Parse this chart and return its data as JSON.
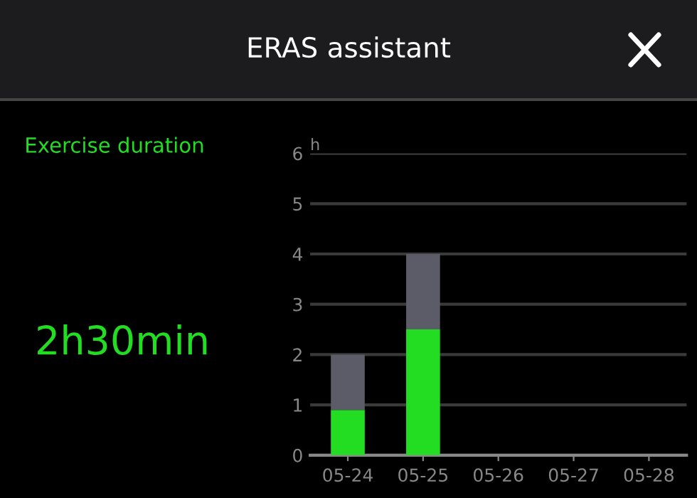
{
  "chart_data": {
    "type": "bar",
    "title": "ERAS assistant",
    "ylabel": "h",
    "annotations": [
      "Exercise duration",
      "2h30min"
    ],
    "categories": [
      "05-24",
      "05-25",
      "05-26",
      "05-27",
      "05-28"
    ],
    "stacked": true,
    "series": [
      {
        "color": "#22dd22",
        "values": [
          0.9,
          2.5,
          null,
          null,
          null
        ]
      },
      {
        "color": "#5c5c68",
        "values": [
          1.1,
          1.5,
          null,
          null,
          null
        ]
      }
    ],
    "ylim": [
      0,
      6
    ],
    "yticks": [
      0,
      1,
      2,
      3,
      4,
      5,
      6
    ],
    "grid": "y",
    "legend": false
  }
}
